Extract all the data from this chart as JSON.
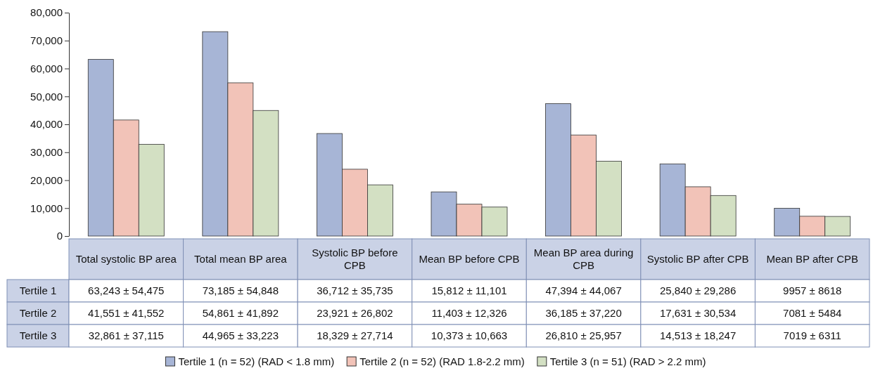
{
  "chart_data": {
    "type": "bar",
    "categories": [
      "Total systolic BP area",
      "Total mean BP area",
      "Systolic BP before CPB",
      "Mean BP before CPB",
      "Mean BP area during CPB",
      "Systolic BP after CPB",
      "Mean BP after CPB"
    ],
    "series": [
      {
        "name": "Tertile 1 (n = 52) (RAD < 1.8 mm)",
        "color": "#a7b5d6",
        "values": [
          63243,
          73185,
          36712,
          15812,
          47394,
          25840,
          9957
        ],
        "value_labels": [
          "63,243 ± 54,475",
          "73,185 ± 54,848",
          "36,712 ± 35,735",
          "15,812 ± 11,101",
          "47,394 ± 44,067",
          "25,840 ± 29,286",
          "9957 ± 8618"
        ]
      },
      {
        "name": "Tertile 2 (n = 52) (RAD 1.8-2.2 mm)",
        "color": "#f2c3b8",
        "values": [
          41551,
          54861,
          23921,
          11403,
          36185,
          17631,
          7081
        ],
        "value_labels": [
          "41,551 ± 41,552",
          "54,861 ± 41,892",
          "23,921 ± 26,802",
          "11,403 ± 12,326",
          "36,185 ± 37,220",
          "17,631 ± 30,534",
          "7081 ± 5484"
        ]
      },
      {
        "name": "Tertile 3 (n = 51) (RAD > 2.2 mm)",
        "color": "#d3e0c3",
        "values": [
          32861,
          44965,
          18329,
          10373,
          26810,
          14513,
          7019
        ],
        "value_labels": [
          "32,861 ± 37,115",
          "44,965 ± 33,223",
          "18,329 ± 27,714",
          "10,373 ± 10,663",
          "26,810 ± 25,957",
          "14,513 ± 18,247",
          "7019 ± 6311"
        ]
      }
    ],
    "annotations": [
      "Tertile 1",
      "Tertile 2",
      "Tertile 3"
    ],
    "ylim": [
      0,
      80000
    ],
    "yticks": [
      {
        "value": 0,
        "label": "0"
      },
      {
        "value": 10000,
        "label": "10,000"
      },
      {
        "value": 20000,
        "label": "20,000"
      },
      {
        "value": 30000,
        "label": "30,000"
      },
      {
        "value": 40000,
        "label": "40,000"
      },
      {
        "value": 50000,
        "label": "50,000"
      },
      {
        "value": 60000,
        "label": "60,000"
      },
      {
        "value": 70000,
        "label": "70,000"
      },
      {
        "value": 80000,
        "label": "80,000"
      }
    ],
    "legend": "bottom"
  }
}
